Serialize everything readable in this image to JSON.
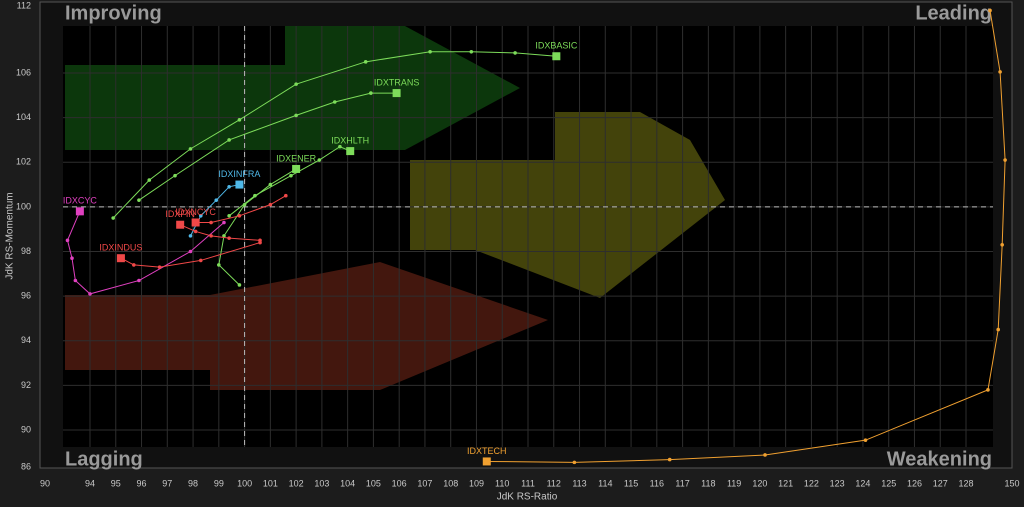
{
  "chart_data": {
    "type": "rrg",
    "x_label": "JdK RS-Ratio",
    "y_label": "JdK RS-Momentum",
    "quadrants": {
      "top_left": "Improving",
      "top_right": "Leading",
      "bottom_left": "Lagging",
      "bottom_right": "Weakening"
    },
    "xlim": [
      90,
      150
    ],
    "xticks": [
      90,
      94,
      95,
      96,
      97,
      98,
      99,
      100,
      101,
      102,
      103,
      104,
      105,
      106,
      107,
      108,
      109,
      110,
      111,
      112,
      113,
      114,
      115,
      116,
      117,
      118,
      119,
      120,
      121,
      122,
      123,
      124,
      125,
      126,
      127,
      128,
      150
    ],
    "ylim": [
      86,
      112
    ],
    "yticks": [
      86,
      90,
      92,
      94,
      96,
      98,
      100,
      102,
      104,
      106,
      112
    ],
    "center": {
      "x": 100,
      "y": 100
    },
    "grid": true,
    "series": [
      {
        "name": "IDXBASIC",
        "color": "#7ddc5a",
        "x": [
          94.9,
          96.3,
          97.9,
          99.8,
          102.0,
          104.7,
          107.2,
          108.8,
          110.5,
          112.1
        ],
        "y": [
          99.5,
          101.2,
          102.6,
          103.9,
          105.5,
          107.0,
          107.9,
          107.9,
          107.8,
          107.5
        ]
      },
      {
        "name": "IDXTRANS",
        "color": "#7ddc5a",
        "x": [
          95.9,
          97.3,
          99.4,
          102.0,
          103.5,
          104.9,
          105.9
        ],
        "y": [
          100.3,
          101.4,
          103.0,
          104.1,
          104.7,
          105.1,
          105.1
        ]
      },
      {
        "name": "IDXHLTH",
        "color": "#7ddc5a",
        "x": [
          99.4,
          100.4,
          101.8,
          102.9,
          103.7,
          104.1
        ],
        "y": [
          99.6,
          100.5,
          101.4,
          102.1,
          102.7,
          102.5
        ]
      },
      {
        "name": "IDXENER",
        "color": "#7ddc5a",
        "x": [
          99.8,
          99.0,
          99.2,
          100.0,
          101.0,
          102.0
        ],
        "y": [
          96.5,
          97.4,
          98.7,
          100.1,
          101.0,
          101.7
        ]
      },
      {
        "name": "IDXINFRA",
        "color": "#4fb8e8",
        "x": [
          97.9,
          98.3,
          98.9,
          99.4,
          99.8
        ],
        "y": [
          98.7,
          99.6,
          100.3,
          100.9,
          101.0
        ]
      },
      {
        "name": "IDXCYC",
        "color": "#e040c0",
        "x": [
          99.2,
          97.9,
          95.9,
          94.0,
          92.7,
          92.4,
          92.0,
          93.1
        ],
        "y": [
          99.3,
          98.0,
          96.7,
          96.1,
          96.7,
          97.7,
          98.5,
          99.8
        ]
      },
      {
        "name": "IDXINDUS",
        "color": "#f04848",
        "x": [
          100.6,
          98.3,
          96.7,
          95.7,
          95.2
        ],
        "y": [
          98.4,
          97.6,
          97.3,
          97.4,
          97.7
        ]
      },
      {
        "name": "IDXNCYC",
        "color": "#f04848",
        "x": [
          101.6,
          101.0,
          99.8,
          98.7,
          98.1
        ],
        "y": [
          100.5,
          100.1,
          99.6,
          99.3,
          99.3
        ]
      },
      {
        "name": "IDXFIN",
        "color": "#f04848",
        "x": [
          100.6,
          99.4,
          98.7,
          98.1,
          97.5
        ],
        "y": [
          98.5,
          98.6,
          98.7,
          98.9,
          99.2
        ]
      },
      {
        "name": "IDXTECH",
        "color": "#f0a030",
        "x": [
          139.5,
          144.3,
          146.7,
          145.3,
          143.4,
          138.5,
          124.1,
          120.2,
          116.5,
          112.8,
          109.4
        ],
        "y": [
          111.6,
          106.1,
          102.1,
          98.3,
          94.5,
          91.8,
          88.9,
          87.3,
          86.8,
          86.5,
          86.6
        ]
      }
    ]
  }
}
